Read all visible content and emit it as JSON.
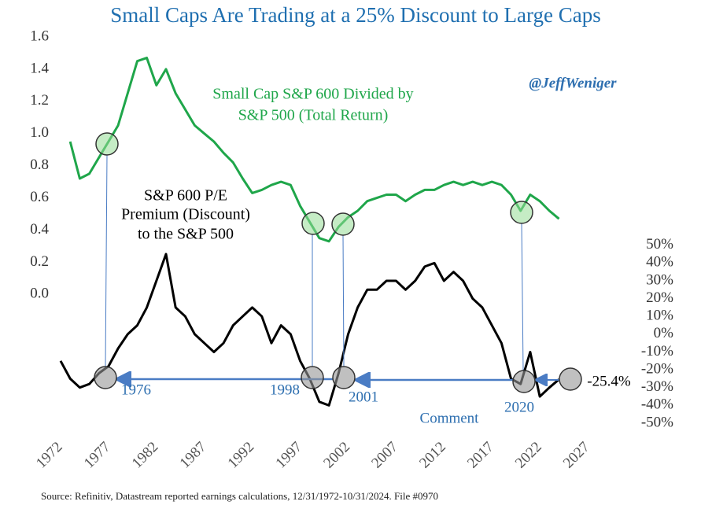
{
  "chart_data": {
    "type": "line",
    "title": "Small Caps Are Trading at a 25% Discount to Large Caps",
    "handle": "@JeffWeniger",
    "source": "Source: Refinitiv, Datastream reported earnings calculations, 12/31/1972-10/31/2024. File #0970",
    "series_labels": [
      [
        "Small Cap S&P 600 Divided by",
        "S&P 500 (Total Return)"
      ],
      [
        "S&P 600 P/E",
        "Premium (Discount)",
        "to the S&P 500"
      ]
    ],
    "annotations": [
      "1976",
      "1998",
      "2001",
      "2020",
      "Comment",
      "-25.4%"
    ],
    "x": [
      1972,
      1973,
      1974,
      1975,
      1976,
      1977,
      1978,
      1979,
      1980,
      1981,
      1982,
      1983,
      1984,
      1985,
      1986,
      1987,
      1988,
      1989,
      1990,
      1991,
      1992,
      1993,
      1994,
      1995,
      1996,
      1997,
      1998,
      1999,
      2000,
      2001,
      2002,
      2003,
      2004,
      2005,
      2006,
      2007,
      2008,
      2009,
      2010,
      2011,
      2012,
      2013,
      2014,
      2015,
      2016,
      2017,
      2018,
      2019,
      2020,
      2021,
      2022,
      2023,
      2024
    ],
    "xlim": [
      1972,
      2027
    ],
    "xticks": [
      1972,
      1977,
      1982,
      1987,
      1992,
      1997,
      2002,
      2007,
      2012,
      2017,
      2022,
      2027
    ],
    "ylim": [
      -0.8,
      1.6
    ],
    "yticks": [
      {
        "value": 0,
        "label": "0.0"
      },
      0.2,
      0.4,
      0.6,
      0.8,
      {
        "value": 1,
        "label": "1.0"
      },
      1.2,
      1.4,
      1.6
    ],
    "y2lim": [
      -50,
      167
    ],
    "y2ticks": [
      {
        "value": -50,
        "label": "-50%"
      },
      {
        "value": -40,
        "label": "-40%"
      },
      {
        "value": -30,
        "label": "-30%"
      },
      {
        "value": -20,
        "label": "-20%"
      },
      {
        "value": -10,
        "label": "-10%"
      },
      {
        "value": 0,
        "label": "0%"
      },
      {
        "value": 10,
        "label": "10%"
      },
      {
        "value": 20,
        "label": "20%"
      },
      {
        "value": 30,
        "label": "30%"
      },
      {
        "value": 40,
        "label": "40%"
      },
      {
        "value": 50,
        "label": "50%"
      }
    ],
    "grid": false,
    "series": [
      {
        "name": "Small Cap S&P 600 / S&P 500",
        "color": "#1fa64a",
        "axis": "y",
        "values": [
          null,
          0.95,
          0.72,
          0.75,
          0.85,
          0.95,
          1.05,
          1.25,
          1.45,
          1.47,
          1.3,
          1.4,
          1.25,
          1.15,
          1.05,
          1.0,
          0.95,
          0.88,
          0.82,
          0.72,
          0.63,
          0.65,
          0.68,
          0.7,
          0.68,
          0.55,
          0.45,
          0.35,
          0.33,
          0.42,
          0.48,
          0.52,
          0.58,
          0.6,
          0.62,
          0.62,
          0.58,
          0.62,
          0.65,
          0.65,
          0.68,
          0.7,
          0.68,
          0.7,
          0.68,
          0.7,
          0.68,
          0.62,
          0.52,
          0.62,
          0.58,
          0.52,
          0.47
        ]
      },
      {
        "name": "S&P 600 P/E Premium",
        "color": "#000000",
        "axis": "y2",
        "values": [
          -15,
          -25,
          -30,
          -28,
          -22,
          -18,
          -8,
          0,
          5,
          15,
          30,
          45,
          15,
          10,
          0,
          -5,
          -10,
          -5,
          5,
          10,
          15,
          10,
          -5,
          5,
          0,
          -15,
          -25,
          -38,
          -40,
          -22,
          0,
          15,
          25,
          25,
          30,
          30,
          25,
          30,
          38,
          40,
          30,
          35,
          30,
          20,
          15,
          5,
          -5,
          -25,
          -28,
          -10,
          -35,
          -30,
          -25.4
        ]
      }
    ]
  }
}
